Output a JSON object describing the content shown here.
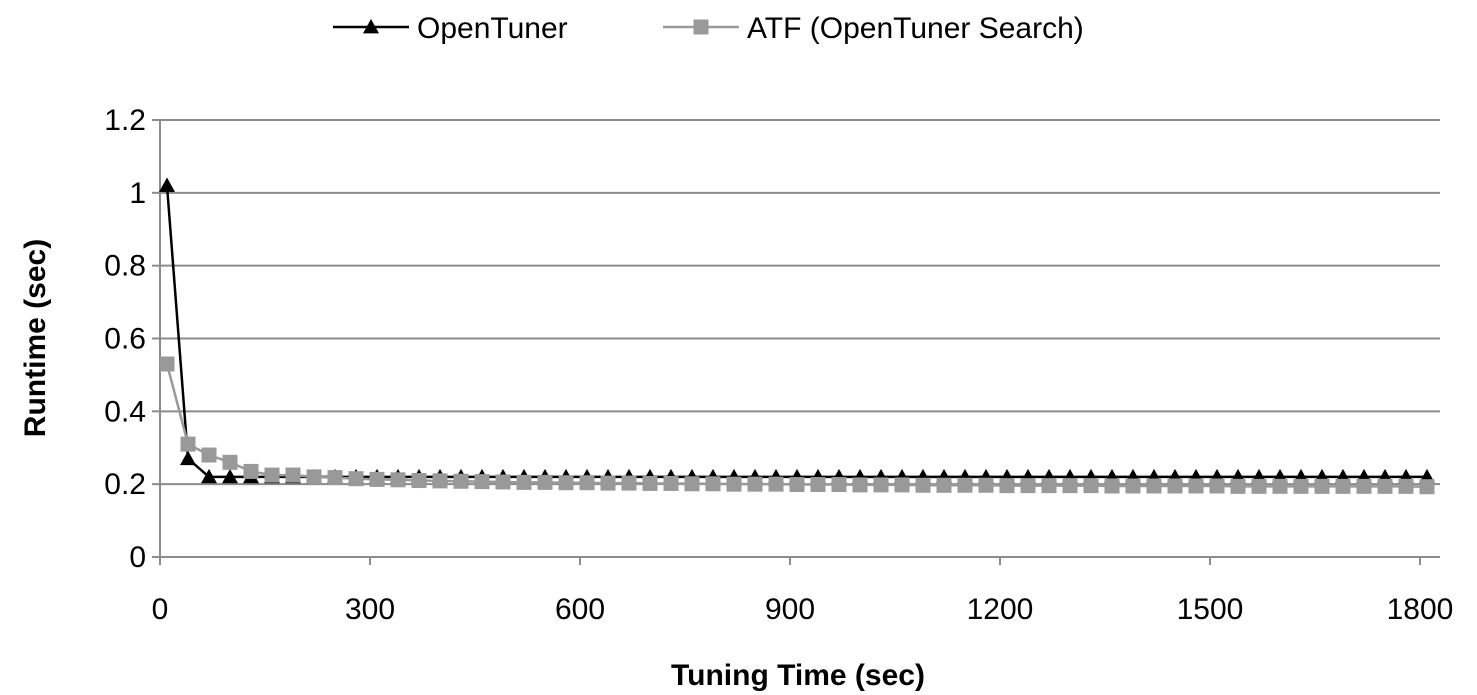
{
  "chart_data": {
    "type": "line",
    "title": "",
    "xlabel": "Tuning Time (sec)",
    "ylabel": "Runtime (sec)",
    "xlim": [
      0,
      1800
    ],
    "ylim": [
      0,
      1.2
    ],
    "xticks": [
      0,
      300,
      600,
      900,
      1200,
      1500,
      1800
    ],
    "xtick_labels": [
      "0",
      "300",
      "600",
      "900",
      "1200",
      "1500",
      "1800"
    ],
    "yticks": [
      0,
      0.2,
      0.4,
      0.6,
      0.8,
      1.0,
      1.2
    ],
    "ytick_labels": [
      "0",
      "0.2",
      "0.4",
      "0.6",
      "0.8",
      "1",
      "1.2"
    ],
    "grid": "horizontal",
    "legend_position": "top",
    "x": [
      10,
      40,
      70,
      100,
      130,
      160,
      190,
      220,
      250,
      280,
      310,
      340,
      370,
      400,
      430,
      460,
      490,
      520,
      550,
      580,
      610,
      640,
      670,
      700,
      730,
      760,
      790,
      820,
      850,
      880,
      910,
      940,
      970,
      1000,
      1030,
      1060,
      1090,
      1120,
      1150,
      1180,
      1210,
      1240,
      1270,
      1300,
      1330,
      1360,
      1390,
      1420,
      1450,
      1480,
      1510,
      1540,
      1570,
      1600,
      1630,
      1660,
      1690,
      1720,
      1750,
      1780,
      1810
    ],
    "series": [
      {
        "name": "OpenTuner",
        "color": "#000000",
        "marker": "triangle",
        "values": [
          1.02,
          0.27,
          0.22,
          0.22,
          0.22,
          0.22,
          0.22,
          0.22,
          0.22,
          0.22,
          0.22,
          0.22,
          0.22,
          0.22,
          0.22,
          0.22,
          0.22,
          0.22,
          0.22,
          0.22,
          0.22,
          0.22,
          0.22,
          0.22,
          0.22,
          0.22,
          0.22,
          0.22,
          0.22,
          0.22,
          0.22,
          0.22,
          0.22,
          0.22,
          0.22,
          0.22,
          0.22,
          0.22,
          0.22,
          0.22,
          0.22,
          0.22,
          0.22,
          0.22,
          0.22,
          0.22,
          0.22,
          0.22,
          0.22,
          0.22,
          0.22,
          0.22,
          0.22,
          0.22,
          0.22,
          0.22,
          0.22,
          0.22,
          0.22,
          0.22,
          0.22
        ]
      },
      {
        "name": "ATF (OpenTuner Search)",
        "color": "#999999",
        "marker": "square",
        "values": [
          0.53,
          0.31,
          0.28,
          0.26,
          0.235,
          0.225,
          0.225,
          0.22,
          0.218,
          0.215,
          0.213,
          0.212,
          0.21,
          0.209,
          0.208,
          0.207,
          0.206,
          0.205,
          0.205,
          0.204,
          0.204,
          0.203,
          0.203,
          0.202,
          0.202,
          0.201,
          0.201,
          0.2,
          0.2,
          0.2,
          0.199,
          0.199,
          0.199,
          0.198,
          0.198,
          0.198,
          0.197,
          0.197,
          0.197,
          0.197,
          0.196,
          0.196,
          0.196,
          0.196,
          0.196,
          0.195,
          0.195,
          0.195,
          0.195,
          0.195,
          0.195,
          0.194,
          0.194,
          0.194,
          0.194,
          0.194,
          0.194,
          0.194,
          0.194,
          0.194,
          0.193
        ]
      }
    ]
  }
}
